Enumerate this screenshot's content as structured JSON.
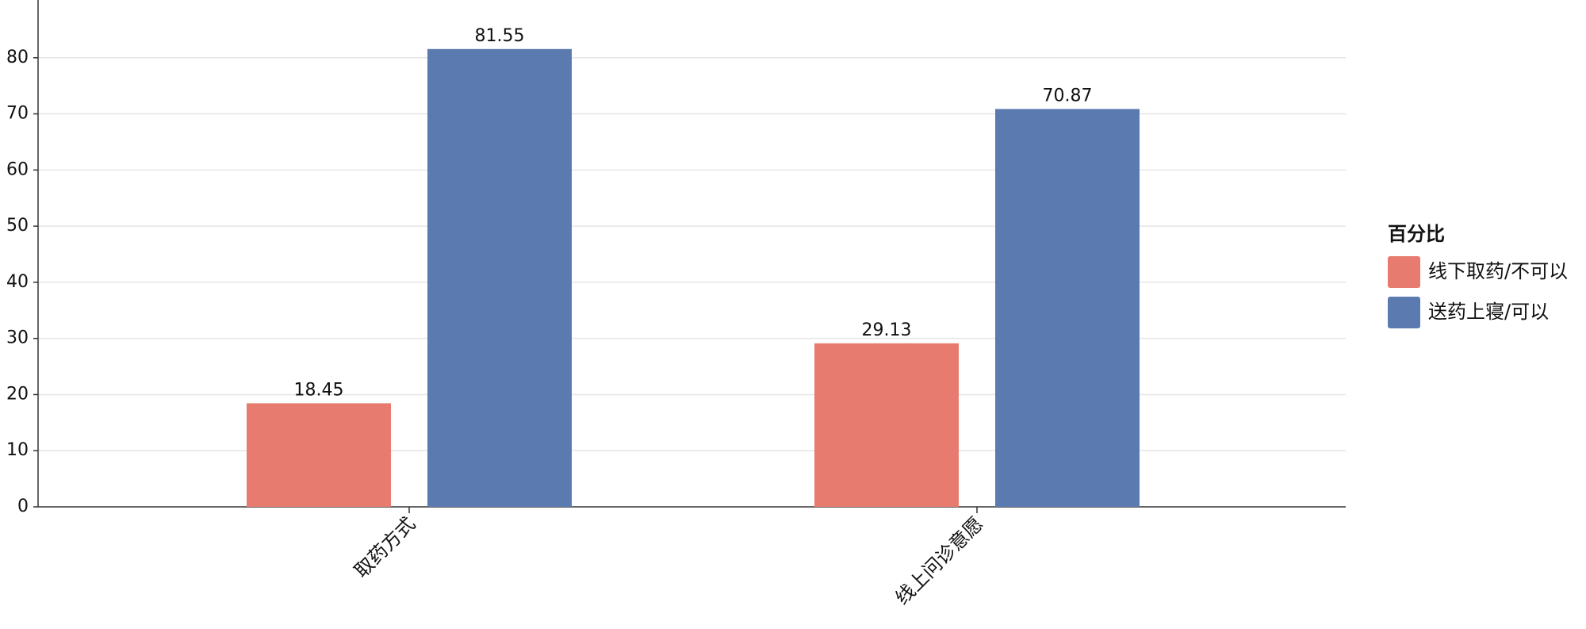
{
  "chart_data": {
    "type": "bar",
    "categories": [
      "取药方式",
      "线上问诊意愿"
    ],
    "series": [
      {
        "name": "线下取药/不可以",
        "color": "#e77b6f",
        "values": [
          18.45,
          29.13
        ]
      },
      {
        "name": "送药上寝/可以",
        "color": "#5b7bb0",
        "values": [
          81.55,
          70.87
        ]
      }
    ],
    "legend_title": "百分比",
    "ylim": [
      0,
      90
    ],
    "yticks": [
      0,
      10,
      20,
      30,
      40,
      50,
      60,
      70,
      80
    ],
    "grid": true,
    "legend": "right"
  }
}
